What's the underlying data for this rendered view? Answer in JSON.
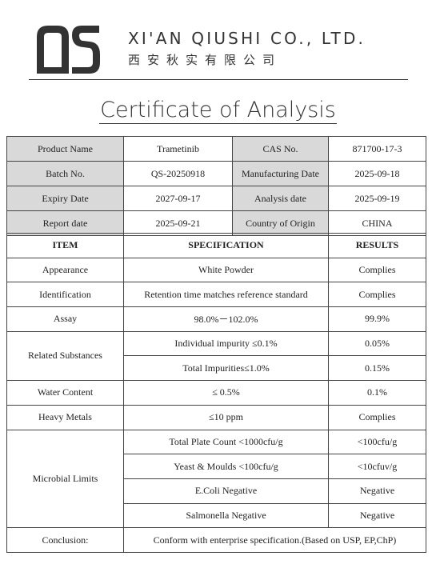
{
  "company": {
    "name_en": "XI'AN QIUSHI CO., LTD.",
    "name_cn": "西安秋实有限公司"
  },
  "document": {
    "title": "Certificate of Analysis"
  },
  "info": [
    {
      "label": "Product Name",
      "value": "Trametinib",
      "label2": "CAS No.",
      "value2": "871700-17-3"
    },
    {
      "label": "Batch No.",
      "value": "QS-20250918",
      "label2": "Manufacturing Date",
      "value2": "2025-09-18"
    },
    {
      "label": "Expiry Date",
      "value": "2027-09-17",
      "label2": "Analysis date",
      "value2": "2025-09-19"
    },
    {
      "label": "Report date",
      "value": "2025-09-21",
      "label2": "Country of Origin",
      "value2": "CHINA"
    }
  ],
  "spec": {
    "headers": {
      "item": "ITEM",
      "specification": "SPECIFICATION",
      "results": "RESULTS"
    },
    "rows": [
      {
        "item": "Appearance",
        "specification": "White Powder",
        "result": "Complies"
      },
      {
        "item": "Identification",
        "specification": "Retention time matches reference standard",
        "result": "Complies"
      },
      {
        "item": "Assay",
        "specification": "98.0%－102.0%",
        "result": "99.9%"
      },
      {
        "item": "Related Substances",
        "specification": "Individual impurity ≤0.1%",
        "result": "0.05%"
      },
      {
        "specification": "Total Impurities≤1.0%",
        "result": "0.15%"
      },
      {
        "item": "Water Content",
        "specification": "≤ 0.5%",
        "result": "0.1%"
      },
      {
        "item": "Heavy Metals",
        "specification": "≤10 ppm",
        "result": "Complies"
      },
      {
        "item": "Microbial Limits",
        "specification": "Total Plate Count <1000cfu/g",
        "result": "<100cfu/g"
      },
      {
        "specification": "Yeast & Moulds <100cfu/g",
        "result": "<10cfuv/g"
      },
      {
        "specification": "E.Coli Negative",
        "result": "Negative"
      },
      {
        "specification": "Salmonella Negative",
        "result": "Negative"
      }
    ],
    "conclusion_label": "Conclusion:",
    "conclusion_text": "Conform with enterprise specification.(Based on USP, EP,ChP)"
  },
  "colors": {
    "label_bg": "#d9d9d9",
    "logo": "#333333"
  }
}
